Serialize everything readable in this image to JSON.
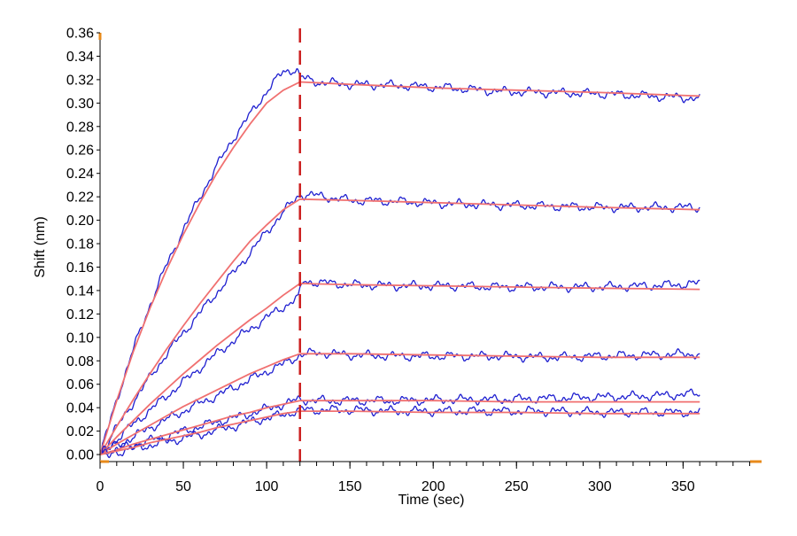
{
  "chart_data": {
    "type": "line",
    "title": "",
    "xlabel": "Time (sec)",
    "ylabel": "Shift (nm)",
    "xlim": [
      0,
      395
    ],
    "ylim": [
      -0.006,
      0.36
    ],
    "x_ticks": [
      0,
      50,
      100,
      150,
      200,
      250,
      300,
      350
    ],
    "x_tick_labels": [
      "0",
      "50",
      "100",
      "150",
      "200",
      "250",
      "300",
      "350"
    ],
    "y_ticks": [
      0.0,
      0.02,
      0.04,
      0.06,
      0.08,
      0.1,
      0.12,
      0.14,
      0.16,
      0.18,
      0.2,
      0.22,
      0.24,
      0.26,
      0.28,
      0.3,
      0.32,
      0.34,
      0.36
    ],
    "y_tick_labels": [
      "0.00",
      "0.02",
      "0.04",
      "0.06",
      "0.08",
      "0.10",
      "0.12",
      "0.14",
      "0.16",
      "0.18",
      "0.20",
      "0.22",
      "0.24",
      "0.26",
      "0.28",
      "0.30",
      "0.32",
      "0.34",
      "0.36"
    ],
    "x_minor_step": 10,
    "grid": false,
    "legend": "none",
    "phase_boundary_x": 120,
    "colors": {
      "measured": "#1f1fd0",
      "fit": "#f07070",
      "boundary": "#cc1f1f",
      "axis": "#000000",
      "axis_end": "#e88a1a"
    },
    "series": [
      {
        "kind": "measured",
        "x": [
          0,
          10,
          20,
          30,
          40,
          50,
          60,
          70,
          80,
          90,
          100,
          110,
          118,
          120,
          130,
          150,
          180,
          210,
          240,
          270,
          300,
          330,
          360
        ],
        "y": [
          0.0,
          0.047,
          0.09,
          0.128,
          0.162,
          0.192,
          0.22,
          0.246,
          0.27,
          0.29,
          0.31,
          0.327,
          0.329,
          0.322,
          0.318,
          0.316,
          0.315,
          0.313,
          0.31,
          0.309,
          0.308,
          0.306,
          0.304
        ]
      },
      {
        "kind": "fit",
        "x": [
          0,
          10,
          20,
          30,
          40,
          50,
          60,
          70,
          80,
          90,
          100,
          110,
          120,
          150,
          200,
          250,
          300,
          360
        ],
        "y": [
          0.0,
          0.046,
          0.088,
          0.125,
          0.158,
          0.188,
          0.215,
          0.24,
          0.262,
          0.282,
          0.3,
          0.311,
          0.318,
          0.316,
          0.313,
          0.311,
          0.309,
          0.306
        ]
      },
      {
        "kind": "measured",
        "x": [
          0,
          10,
          20,
          30,
          40,
          50,
          60,
          70,
          80,
          90,
          100,
          110,
          120,
          130,
          150,
          180,
          210,
          240,
          270,
          300,
          330,
          360
        ],
        "y": [
          0.0,
          0.023,
          0.045,
          0.066,
          0.086,
          0.104,
          0.121,
          0.138,
          0.155,
          0.172,
          0.19,
          0.207,
          0.222,
          0.221,
          0.217,
          0.216,
          0.214,
          0.213,
          0.212,
          0.211,
          0.211,
          0.211
        ]
      },
      {
        "kind": "fit",
        "x": [
          0,
          10,
          20,
          30,
          40,
          50,
          60,
          70,
          80,
          90,
          100,
          110,
          120,
          150,
          200,
          250,
          300,
          360
        ],
        "y": [
          0.0,
          0.024,
          0.047,
          0.069,
          0.09,
          0.11,
          0.129,
          0.147,
          0.165,
          0.182,
          0.196,
          0.209,
          0.218,
          0.217,
          0.215,
          0.213,
          0.211,
          0.209
        ]
      },
      {
        "kind": "measured",
        "x": [
          0,
          10,
          20,
          30,
          40,
          50,
          60,
          70,
          80,
          90,
          100,
          110,
          119,
          122,
          130,
          150,
          180,
          210,
          240,
          270,
          300,
          330,
          360
        ],
        "y": [
          0.0,
          0.013,
          0.026,
          0.038,
          0.05,
          0.062,
          0.074,
          0.086,
          0.097,
          0.107,
          0.117,
          0.126,
          0.134,
          0.148,
          0.147,
          0.145,
          0.144,
          0.144,
          0.143,
          0.143,
          0.143,
          0.144,
          0.146
        ]
      },
      {
        "kind": "fit",
        "x": [
          0,
          10,
          20,
          30,
          40,
          50,
          60,
          70,
          80,
          90,
          100,
          110,
          120,
          150,
          200,
          250,
          300,
          360
        ],
        "y": [
          0.0,
          0.015,
          0.029,
          0.043,
          0.056,
          0.069,
          0.081,
          0.093,
          0.104,
          0.115,
          0.125,
          0.136,
          0.146,
          0.145,
          0.144,
          0.143,
          0.142,
          0.141
        ]
      },
      {
        "kind": "measured",
        "x": [
          0,
          10,
          20,
          30,
          40,
          50,
          60,
          70,
          80,
          90,
          100,
          110,
          120,
          130,
          150,
          180,
          210,
          240,
          270,
          300,
          330,
          360
        ],
        "y": [
          0.0,
          0.008,
          0.015,
          0.023,
          0.03,
          0.037,
          0.044,
          0.05,
          0.057,
          0.064,
          0.071,
          0.077,
          0.085,
          0.087,
          0.085,
          0.084,
          0.084,
          0.084,
          0.083,
          0.084,
          0.085,
          0.086
        ]
      },
      {
        "kind": "fit",
        "x": [
          0,
          10,
          20,
          30,
          40,
          50,
          60,
          70,
          80,
          90,
          100,
          110,
          120,
          150,
          200,
          250,
          300,
          360
        ],
        "y": [
          0.0,
          0.009,
          0.017,
          0.025,
          0.033,
          0.041,
          0.048,
          0.055,
          0.062,
          0.069,
          0.075,
          0.081,
          0.086,
          0.086,
          0.085,
          0.084,
          0.083,
          0.083
        ]
      },
      {
        "kind": "measured",
        "x": [
          0,
          10,
          20,
          30,
          40,
          50,
          60,
          70,
          80,
          90,
          100,
          110,
          120,
          130,
          150,
          180,
          210,
          240,
          270,
          300,
          330,
          360
        ],
        "y": [
          0.0,
          0.004,
          0.008,
          0.012,
          0.016,
          0.02,
          0.024,
          0.028,
          0.031,
          0.035,
          0.039,
          0.043,
          0.047,
          0.046,
          0.046,
          0.046,
          0.047,
          0.047,
          0.048,
          0.049,
          0.05,
          0.052
        ]
      },
      {
        "kind": "fit",
        "x": [
          0,
          10,
          20,
          30,
          40,
          50,
          60,
          70,
          80,
          90,
          100,
          110,
          120,
          150,
          200,
          250,
          300,
          360
        ],
        "y": [
          0.0,
          0.004,
          0.009,
          0.013,
          0.017,
          0.021,
          0.025,
          0.029,
          0.033,
          0.036,
          0.04,
          0.043,
          0.046,
          0.046,
          0.046,
          0.045,
          0.045,
          0.045
        ]
      },
      {
        "kind": "measured",
        "x": [
          0,
          10,
          20,
          30,
          40,
          50,
          60,
          70,
          80,
          90,
          100,
          110,
          120,
          130,
          150,
          180,
          210,
          240,
          270,
          300,
          330,
          360
        ],
        "y": [
          0.0,
          0.002,
          0.005,
          0.008,
          0.011,
          0.014,
          0.017,
          0.021,
          0.024,
          0.028,
          0.031,
          0.034,
          0.038,
          0.038,
          0.038,
          0.037,
          0.037,
          0.037,
          0.037,
          0.036,
          0.036,
          0.036
        ]
      },
      {
        "kind": "fit",
        "x": [
          0,
          10,
          20,
          30,
          40,
          50,
          60,
          70,
          80,
          90,
          100,
          110,
          120,
          150,
          200,
          250,
          300,
          360
        ],
        "y": [
          0.0,
          0.003,
          0.006,
          0.01,
          0.013,
          0.016,
          0.019,
          0.023,
          0.026,
          0.029,
          0.032,
          0.035,
          0.037,
          0.037,
          0.036,
          0.036,
          0.035,
          0.035
        ]
      }
    ]
  }
}
